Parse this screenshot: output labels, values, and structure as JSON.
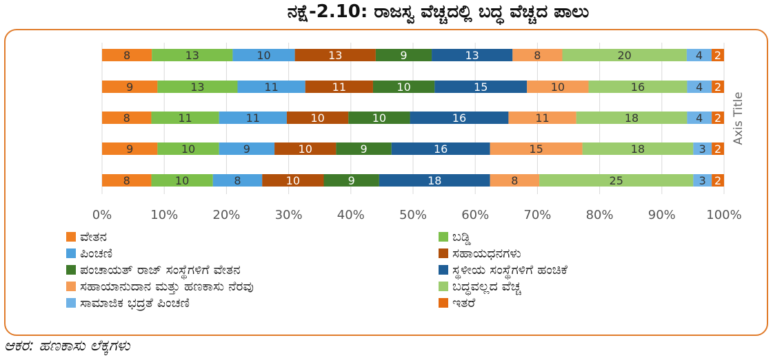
{
  "title": "ನಕ್ಷೆ-2.10: ರಾಜಸ್ವ ವೆಚ್ಚದಲ್ಲಿ ಬದ್ಧ ವೆಚ್ಚದ ಪಾಲು",
  "source": "ಆಕರ: ಹಣಕಾಸು ಲೆಕ್ಕಗಳು",
  "chart_data": {
    "type": "bar",
    "orientation": "horizontal",
    "stacked": "percent",
    "ylabel": "Axis Title",
    "xlim": [
      0,
      100
    ],
    "x_ticks": [
      "0%",
      "10%",
      "20%",
      "30%",
      "40%",
      "50%",
      "60%",
      "70%",
      "80%",
      "90%",
      "100%"
    ],
    "grid": true,
    "legend_position": "bottom",
    "series": [
      {
        "name": "ವೇತನ",
        "color": "#F07F22",
        "values": [
          8,
          9,
          8,
          9,
          8
        ]
      },
      {
        "name": "ಬಡ್ಡಿ",
        "color": "#7CBF4A",
        "values": [
          13,
          13,
          11,
          10,
          10
        ]
      },
      {
        "name": "ಪಿಂಚಣಿ",
        "color": "#4EA1DD",
        "values": [
          10,
          11,
          11,
          9,
          8
        ]
      },
      {
        "name": "ಸಹಾಯಧನಗಳು",
        "color": "#B04F0A",
        "values": [
          13,
          11,
          10,
          10,
          10
        ]
      },
      {
        "name": "ಪಂಚಾಯತ್ ರಾಜ್ ಸಂಸ್ಥೆಗಳಿಗೆ ವೇತನ",
        "color": "#3F7A2A",
        "values": [
          9,
          10,
          10,
          9,
          9
        ]
      },
      {
        "name": "ಸ್ಥಳೀಯ ಸಂಸ್ಥೆಗಳಿಗೆ ಹಂಚಿಕೆ",
        "color": "#1F5E96",
        "values": [
          13,
          15,
          16,
          16,
          18
        ]
      },
      {
        "name": "ಸಹಾಯಾನುದಾನ ಮತ್ತು ಹಣಕಾಸು ನೆರವು",
        "color": "#F59C56",
        "values": [
          8,
          10,
          11,
          15,
          8
        ]
      },
      {
        "name": "ಬದ್ಧವಲ್ಲದ ವೆಚ್ಚ",
        "color": "#9CCC6E",
        "values": [
          20,
          16,
          18,
          18,
          25
        ]
      },
      {
        "name": "ಸಾಮಾಜಿಕ ಭದ್ರತೆ ಪಿಂಚಣಿ",
        "color": "#6FB2E6",
        "values": [
          4,
          4,
          4,
          3,
          3
        ]
      },
      {
        "name": "ಇತರೆ",
        "color": "#E46A10",
        "values": [
          2,
          2,
          2,
          2,
          2
        ]
      }
    ]
  }
}
